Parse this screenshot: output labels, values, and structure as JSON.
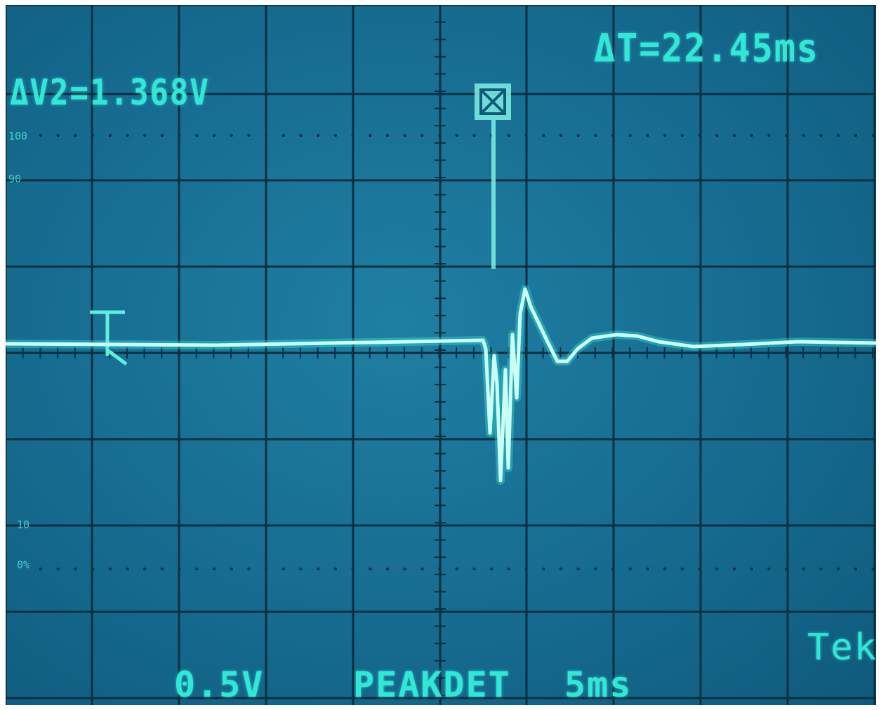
{
  "readouts": {
    "delta_v2": "ΔV2=1.368V",
    "delta_t": "ΔT=22.45ms",
    "volts_per_div": "0.5V",
    "acquire_mode": "PEAKDET",
    "time_per_div": "5ms",
    "brand": "Tek"
  },
  "graticule_marks": {
    "p100": "100",
    "p90": "90",
    "p10": "10",
    "p0": "0%"
  },
  "colors": {
    "screen": "#166c90",
    "grid": "#0a2f40",
    "trace": "#c9fff4",
    "text": "#2fe8d6"
  },
  "icons": {
    "trigger_marker": "trigger-position-icon",
    "ground_marker": "channel-ground-icon"
  }
}
